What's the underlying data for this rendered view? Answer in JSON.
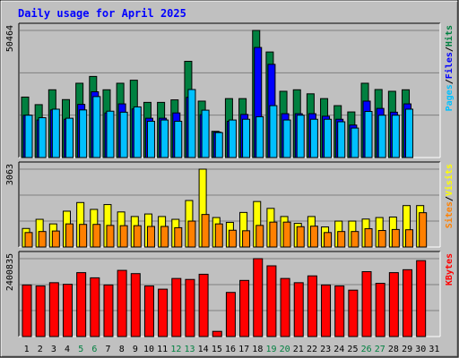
{
  "title": "Daily usage for April 2025",
  "colors": {
    "background": "#C0C0C0",
    "plot_bg": "#C0C0C0",
    "title": "#0000FF",
    "hits": "#008040",
    "files": "#0000FF",
    "pages": "#00C0FF",
    "visits": "#FFFF00",
    "sites": "#FF8000",
    "kbytes": "#FF0000",
    "weekend_label": "#008040",
    "weekday_label": "#000000"
  },
  "chart_data": [
    {
      "type": "bar",
      "name": "hits-files-pages",
      "ymax_label": "50464",
      "ylim": [
        0,
        50464
      ],
      "grid": true,
      "categories": [
        "1",
        "2",
        "3",
        "4",
        "5",
        "6",
        "7",
        "8",
        "9",
        "10",
        "11",
        "12",
        "13",
        "14",
        "15",
        "16",
        "17",
        "18",
        "19",
        "20",
        "21",
        "22",
        "23",
        "24",
        "25",
        "26",
        "27",
        "28",
        "29",
        "30",
        "31"
      ],
      "weekend_days": [
        "5",
        "6",
        "12",
        "13",
        "19",
        "20",
        "26",
        "27"
      ],
      "legend": [
        {
          "text": "Hits",
          "color": "#008040"
        },
        {
          "text": "/",
          "color": "#000000"
        },
        {
          "text": "Files",
          "color": "#0000FF"
        },
        {
          "text": "/",
          "color": "#000000"
        },
        {
          "text": "Pages",
          "color": "#00C0FF"
        }
      ],
      "series": [
        {
          "name": "Hits",
          "values": [
            24000,
            21000,
            26900,
            23000,
            29500,
            32200,
            26900,
            29500,
            30700,
            21900,
            21900,
            22900,
            38200,
            22400,
            10400,
            23400,
            23400,
            50464,
            41900,
            26300,
            26900,
            25300,
            23400,
            20600,
            18100,
            29500,
            27000,
            26300,
            26900,
            0,
            0
          ]
        },
        {
          "name": "Files",
          "values": [
            16800,
            14900,
            18900,
            15200,
            21100,
            26100,
            17700,
            21300,
            19300,
            15600,
            15600,
            17700,
            23900,
            17000,
            10100,
            14400,
            17100,
            43700,
            37000,
            17400,
            17400,
            17400,
            16400,
            15200,
            12900,
            22400,
            19500,
            18000,
            21300,
            0,
            0
          ]
        },
        {
          "name": "Pages",
          "values": [
            16800,
            15800,
            19200,
            15600,
            18900,
            24200,
            18400,
            18000,
            20100,
            14400,
            14900,
            14400,
            27000,
            18800,
            9900,
            14900,
            15200,
            16200,
            20600,
            14900,
            16800,
            15200,
            15200,
            14200,
            11700,
            18300,
            16800,
            16800,
            19200,
            0,
            0
          ]
        }
      ]
    },
    {
      "type": "bar",
      "name": "visits-sites",
      "ymax_label": "3063",
      "ylim": [
        0,
        3063
      ],
      "grid": true,
      "categories": [
        "1",
        "2",
        "3",
        "4",
        "5",
        "6",
        "7",
        "8",
        "9",
        "10",
        "11",
        "12",
        "13",
        "14",
        "15",
        "16",
        "17",
        "18",
        "19",
        "20",
        "21",
        "22",
        "23",
        "24",
        "25",
        "26",
        "27",
        "28",
        "29",
        "30",
        "31"
      ],
      "legend": [
        {
          "text": "Visits",
          "color": "#FFFF00"
        },
        {
          "text": "/",
          "color": "#000000"
        },
        {
          "text": "Sites",
          "color": "#FF8000"
        }
      ],
      "series": [
        {
          "name": "Visits",
          "values": [
            730,
            1090,
            910,
            1410,
            1750,
            1480,
            1670,
            1380,
            1200,
            1300,
            1200,
            1090,
            1830,
            3063,
            1160,
            970,
            1360,
            1790,
            1520,
            1200,
            930,
            1200,
            790,
            1020,
            1020,
            1100,
            1160,
            1180,
            1630,
            1630,
            0
          ]
        },
        {
          "name": "Sites",
          "values": [
            570,
            610,
            630,
            910,
            890,
            890,
            850,
            840,
            840,
            810,
            810,
            760,
            1020,
            1280,
            910,
            660,
            640,
            850,
            980,
            980,
            800,
            820,
            570,
            610,
            610,
            720,
            650,
            690,
            680,
            1350,
            0
          ]
        }
      ]
    },
    {
      "type": "bar",
      "name": "kbytes",
      "ymax_label": "2400835",
      "ylim": [
        0,
        2400835
      ],
      "grid": true,
      "categories": [
        "1",
        "2",
        "3",
        "4",
        "5",
        "6",
        "7",
        "8",
        "9",
        "10",
        "11",
        "12",
        "13",
        "14",
        "15",
        "16",
        "17",
        "18",
        "19",
        "20",
        "21",
        "22",
        "23",
        "24",
        "25",
        "26",
        "27",
        "28",
        "29",
        "30",
        "31"
      ],
      "legend": [
        {
          "text": "KBytes",
          "color": "#FF0000"
        }
      ],
      "series": [
        {
          "name": "KBytes",
          "values": [
            1590000,
            1560000,
            1660000,
            1610000,
            1970000,
            1810000,
            1590000,
            2040000,
            1940000,
            1560000,
            1460000,
            1790000,
            1760000,
            1920000,
            160000,
            1360000,
            1730000,
            2400835,
            2180000,
            1790000,
            1660000,
            1870000,
            1590000,
            1560000,
            1430000,
            2000000,
            1640000,
            1970000,
            2060000,
            2340000,
            0
          ]
        }
      ]
    }
  ]
}
